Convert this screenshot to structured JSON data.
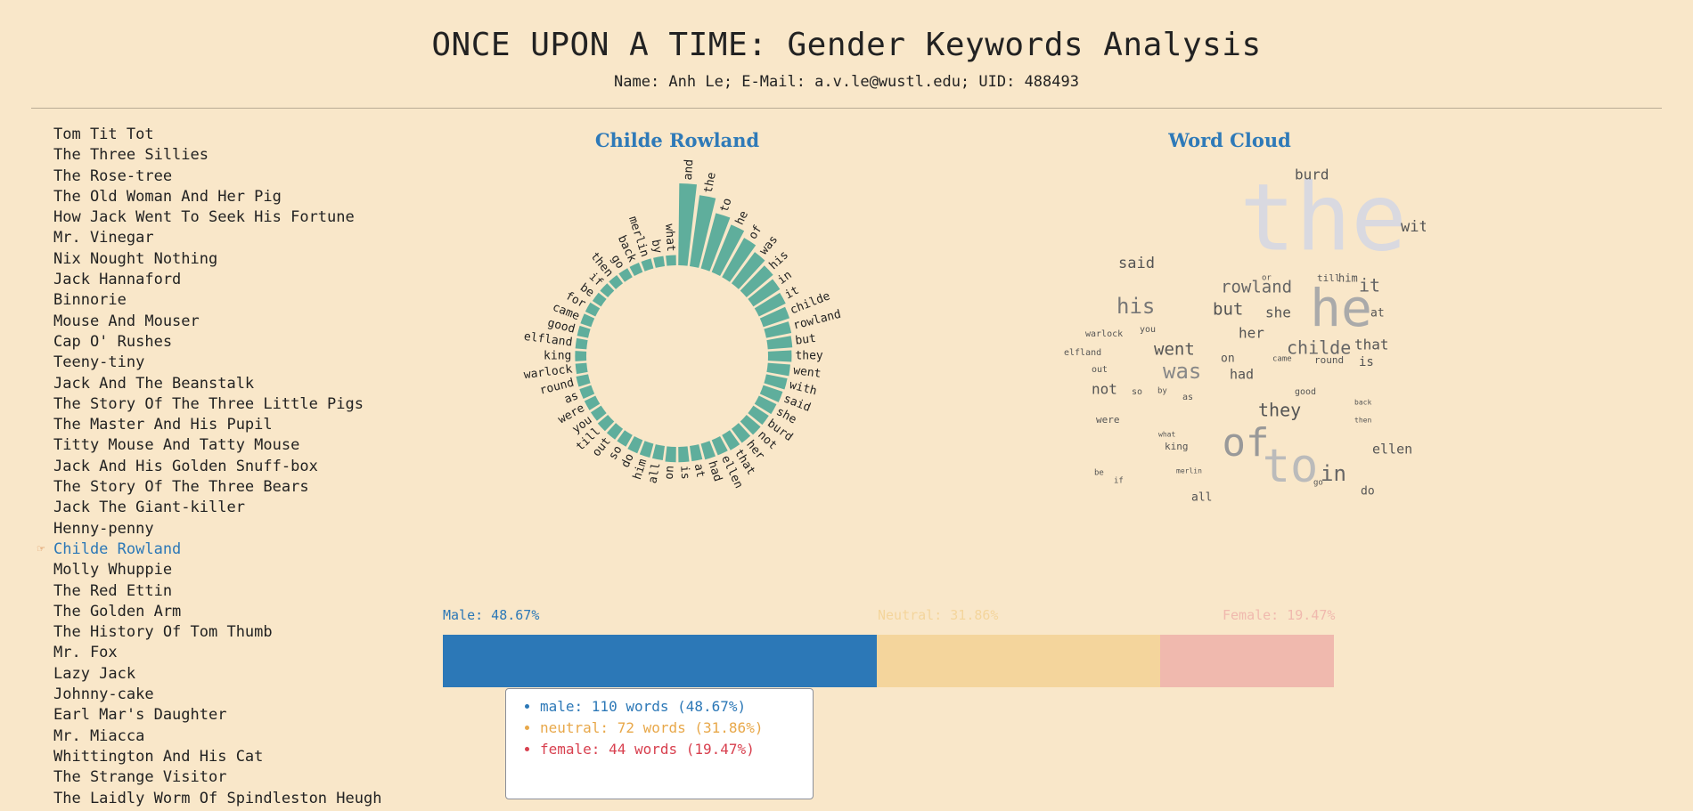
{
  "header": {
    "title": "ONCE UPON A TIME: Gender Keywords Analysis",
    "subtitle": "Name: Anh Le; E-Mail: a.v.le@wustl.edu; UID: 488493"
  },
  "stories": [
    "Tom Tit Tot",
    "The Three Sillies",
    "The Rose-tree",
    "The Old Woman And Her Pig",
    "How Jack Went To Seek His Fortune",
    "Mr. Vinegar",
    "Nix Nought Nothing",
    "Jack Hannaford",
    "Binnorie",
    "Mouse And Mouser",
    "Cap O' Rushes",
    "Teeny-tiny",
    "Jack And The Beanstalk",
    "The Story Of The Three Little Pigs",
    "The Master And His Pupil",
    "Titty Mouse And Tatty Mouse",
    "Jack And His Golden Snuff-box",
    "The Story Of The Three Bears",
    "Jack The Giant-killer",
    "Henny-penny",
    "Childe Rowland",
    "Molly Whuppie",
    "The Red Ettin",
    "The Golden Arm",
    "The History Of Tom Thumb",
    "Mr. Fox",
    "Lazy Jack",
    "Johnny-cake",
    "Earl Mar's Daughter",
    "Mr. Miacca",
    "Whittington And His Cat",
    "The Strange Visitor",
    "The Laidly Worm Of Spindleston Heugh"
  ],
  "selected_index": 20,
  "pointer_icon": "pointing-hand-icon",
  "radial": {
    "title": "Childe Rowland",
    "bar_color": "#5fae9c",
    "words": [
      "and",
      "the",
      "to",
      "he",
      "of",
      "was",
      "his",
      "in",
      "it",
      "childe",
      "rowland",
      "but",
      "they",
      "went",
      "with",
      "said",
      "she",
      "burd",
      "not",
      "her",
      "that",
      "ellen",
      "had",
      "at",
      "is",
      "on",
      "all",
      "him",
      "do",
      "so",
      "out",
      "till",
      "you",
      "were",
      "as",
      "round",
      "warlock",
      "king",
      "elfland",
      "good",
      "came",
      "for",
      "be",
      "if",
      "then",
      "go",
      "back",
      "merlin",
      "by",
      "what"
    ],
    "counts": [
      80,
      70,
      56,
      50,
      44,
      38,
      34,
      31,
      29,
      27,
      25,
      24,
      23,
      22,
      21,
      20,
      19,
      18,
      18,
      17,
      17,
      16,
      16,
      15,
      15,
      15,
      14,
      14,
      14,
      13,
      13,
      13,
      12,
      12,
      12,
      12,
      11,
      11,
      11,
      11,
      11,
      11,
      10,
      10,
      10,
      10,
      10,
      10,
      10,
      10
    ]
  },
  "wordcloud": {
    "title": "Word Cloud",
    "words": [
      {
        "text": "the",
        "size": 104,
        "color": "#d9d9e0"
      },
      {
        "text": "he",
        "size": 58,
        "color": "#aaaaaa"
      },
      {
        "text": "of",
        "size": 44,
        "color": "#999999"
      },
      {
        "text": "to",
        "size": 52,
        "color": "#bbbbbb"
      },
      {
        "text": "burd",
        "size": 16,
        "color": "#555555"
      },
      {
        "text": "with",
        "size": 17,
        "color": "#555555"
      },
      {
        "text": "said",
        "size": 17,
        "color": "#555555"
      },
      {
        "text": "rowland",
        "size": 19,
        "color": "#666666"
      },
      {
        "text": "or",
        "size": 9,
        "color": "#555555"
      },
      {
        "text": "till",
        "size": 11,
        "color": "#555555"
      },
      {
        "text": "him",
        "size": 12,
        "color": "#555555"
      },
      {
        "text": "it",
        "size": 20,
        "color": "#666666"
      },
      {
        "text": "his",
        "size": 24,
        "color": "#777777"
      },
      {
        "text": "but",
        "size": 19,
        "color": "#555555"
      },
      {
        "text": "she",
        "size": 16,
        "color": "#555555"
      },
      {
        "text": "at",
        "size": 13,
        "color": "#555555"
      },
      {
        "text": "warlock",
        "size": 10,
        "color": "#555555"
      },
      {
        "text": "you",
        "size": 10,
        "color": "#555555"
      },
      {
        "text": "her",
        "size": 16,
        "color": "#555555"
      },
      {
        "text": "childe",
        "size": 20,
        "color": "#666666"
      },
      {
        "text": "that",
        "size": 16,
        "color": "#555555"
      },
      {
        "text": "elfland",
        "size": 10,
        "color": "#555555"
      },
      {
        "text": "went",
        "size": 19,
        "color": "#555555"
      },
      {
        "text": "on",
        "size": 13,
        "color": "#555555"
      },
      {
        "text": "came",
        "size": 9,
        "color": "#555555"
      },
      {
        "text": "round",
        "size": 11,
        "color": "#555555"
      },
      {
        "text": "is",
        "size": 14,
        "color": "#555555"
      },
      {
        "text": "out",
        "size": 10,
        "color": "#555555"
      },
      {
        "text": "was",
        "size": 24,
        "color": "#888888"
      },
      {
        "text": "had",
        "size": 15,
        "color": "#555555"
      },
      {
        "text": "not",
        "size": 16,
        "color": "#555555"
      },
      {
        "text": "so",
        "size": 10,
        "color": "#555555"
      },
      {
        "text": "by",
        "size": 9,
        "color": "#555555"
      },
      {
        "text": "good",
        "size": 10,
        "color": "#555555"
      },
      {
        "text": "as",
        "size": 10,
        "color": "#555555"
      },
      {
        "text": "they",
        "size": 20,
        "color": "#555555"
      },
      {
        "text": "back",
        "size": 8,
        "color": "#555555"
      },
      {
        "text": "were",
        "size": 11,
        "color": "#555555"
      },
      {
        "text": "then",
        "size": 8,
        "color": "#555555"
      },
      {
        "text": "what",
        "size": 8,
        "color": "#555555"
      },
      {
        "text": "king",
        "size": 11,
        "color": "#555555"
      },
      {
        "text": "ellen",
        "size": 15,
        "color": "#555555"
      },
      {
        "text": "in",
        "size": 24,
        "color": "#666666"
      },
      {
        "text": "be",
        "size": 9,
        "color": "#555555"
      },
      {
        "text": "merlin",
        "size": 8,
        "color": "#555555"
      },
      {
        "text": "if",
        "size": 9,
        "color": "#555555"
      },
      {
        "text": "go",
        "size": 9,
        "color": "#555555"
      },
      {
        "text": "do",
        "size": 13,
        "color": "#555555"
      },
      {
        "text": "all",
        "size": 13,
        "color": "#555555"
      }
    ]
  },
  "gender": {
    "male_label": "Male: 48.67%",
    "neutral_label": "Neutral: 31.86%",
    "female_label": "Female: 19.47%",
    "male_pct": 48.67,
    "neutral_pct": 31.86,
    "female_pct": 19.47,
    "male_color": "#2c78b7",
    "neutral_color": "#f4d59c",
    "female_color": "#f0b9ae"
  },
  "tooltip": {
    "male": "male: 110 words (48.67%)",
    "neutral": "neutral: 72 words (31.86%)",
    "female": "female: 44 words (19.47%)",
    "male_color": "#2c78b7",
    "neutral_color": "#e8a84a",
    "female_color": "#d8404f"
  }
}
